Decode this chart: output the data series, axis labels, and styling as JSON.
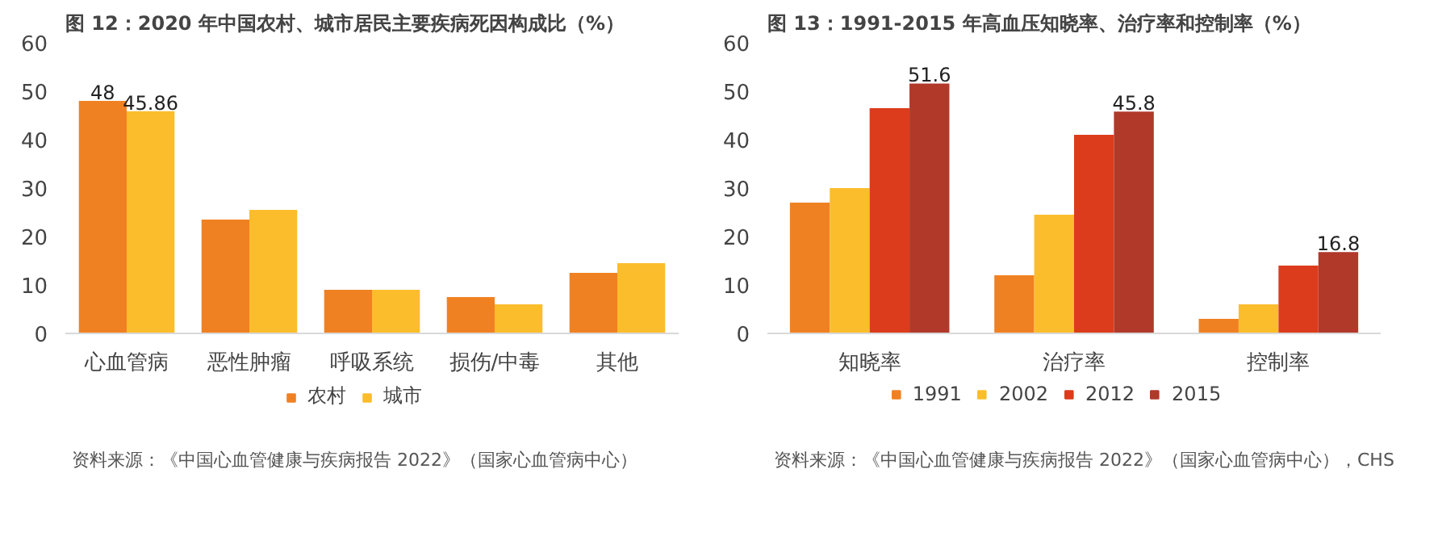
{
  "chart_data": [
    {
      "type": "bar",
      "title": "图 12：2020 年中国农村、城市居民主要疾病死因构成比（%）",
      "categories": [
        "心血管病",
        "恶性肿瘤",
        "呼吸系统",
        "损伤/中毒",
        "其他"
      ],
      "series": [
        {
          "name": "农村",
          "color": "#f08122",
          "values": [
            48,
            23.5,
            9,
            7.5,
            12.5
          ],
          "value_labels": [
            "48",
            null,
            null,
            null,
            null
          ]
        },
        {
          "name": "城市",
          "color": "#fbbd2c",
          "values": [
            45.86,
            25.5,
            9,
            6,
            14.5
          ],
          "value_labels": [
            "45.86",
            null,
            null,
            null,
            null
          ]
        }
      ],
      "ylim": [
        0,
        60
      ],
      "yticks": [
        0,
        10,
        20,
        30,
        40,
        50,
        60
      ],
      "grid": false,
      "legend": "bottom",
      "annotations": [
        "资料来源：《中国心血管健康与疾病报告 2022》（国家心血管病中心）"
      ]
    },
    {
      "type": "bar",
      "title": "图 13：1991-2015 年高血压知晓率、治疗率和控制率（%）",
      "categories": [
        "知晓率",
        "治疗率",
        "控制率"
      ],
      "series": [
        {
          "name": "1991",
          "color": "#f08122",
          "values": [
            27,
            12,
            3
          ]
        },
        {
          "name": "2002",
          "color": "#fbbd2c",
          "values": [
            30,
            24.5,
            6
          ]
        },
        {
          "name": "2012",
          "color": "#dc3c1c",
          "values": [
            46.5,
            41,
            14
          ]
        },
        {
          "name": "2015",
          "color": "#b0392a",
          "values": [
            51.6,
            45.8,
            16.8
          ],
          "value_labels": [
            "51.6",
            "45.8",
            "16.8"
          ]
        }
      ],
      "ylim": [
        0,
        60
      ],
      "yticks": [
        0,
        10,
        20,
        30,
        40,
        50,
        60
      ],
      "grid": false,
      "legend": "bottom",
      "annotations": [
        "资料来源：《中国心血管健康与疾病报告 2022》（国家心血管病中心），CHS"
      ]
    }
  ]
}
